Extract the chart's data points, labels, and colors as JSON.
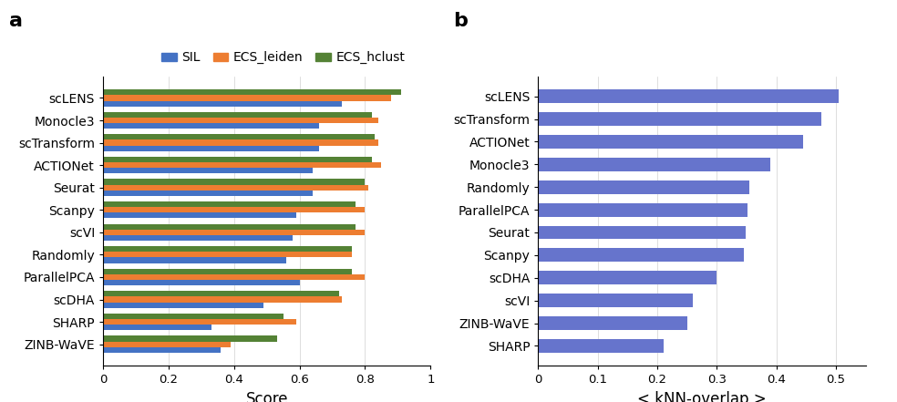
{
  "panel_a": {
    "categories": [
      "scLENS",
      "Monocle3",
      "scTransform",
      "ACTIONet",
      "Seurat",
      "Scanpy",
      "scVI",
      "Randomly",
      "ParallelPCA",
      "scDHA",
      "SHARP",
      "ZINB-WaVE"
    ],
    "SIL": [
      0.73,
      0.66,
      0.66,
      0.64,
      0.64,
      0.59,
      0.58,
      0.56,
      0.6,
      0.49,
      0.33,
      0.36
    ],
    "ECS_leiden": [
      0.88,
      0.84,
      0.84,
      0.85,
      0.81,
      0.8,
      0.8,
      0.76,
      0.8,
      0.73,
      0.59,
      0.39
    ],
    "ECS_hclust": [
      0.91,
      0.82,
      0.83,
      0.82,
      0.8,
      0.77,
      0.77,
      0.76,
      0.76,
      0.72,
      0.55,
      0.53
    ],
    "colors": {
      "SIL": "#4472c4",
      "ECS_leiden": "#ed7d31",
      "ECS_hclust": "#548235"
    },
    "xlabel": "Score",
    "xlim": [
      0,
      1
    ],
    "xticks": [
      0,
      0.2,
      0.4,
      0.6,
      0.8,
      1.0
    ]
  },
  "panel_b": {
    "categories": [
      "scLENS",
      "scTransform",
      "ACTIONet",
      "Monocle3",
      "Randomly",
      "ParallelPCA",
      "Seurat",
      "Scanpy",
      "scDHA",
      "scVI",
      "ZINB-WaVE",
      "SHARP"
    ],
    "values": [
      0.505,
      0.475,
      0.445,
      0.39,
      0.355,
      0.352,
      0.348,
      0.345,
      0.3,
      0.26,
      0.25,
      0.21
    ],
    "bar_color": "#6674cc",
    "xlabel": "< kNN-overlap >",
    "xlim": [
      0,
      0.55
    ],
    "xticks": [
      0,
      0.1,
      0.2,
      0.3,
      0.4,
      0.5
    ]
  },
  "panel_labels": [
    "a",
    "b"
  ],
  "panel_label_fontsize": 16,
  "tick_fontsize": 9.5,
  "label_fontsize": 12,
  "legend_fontsize": 10,
  "category_fontsize": 10
}
